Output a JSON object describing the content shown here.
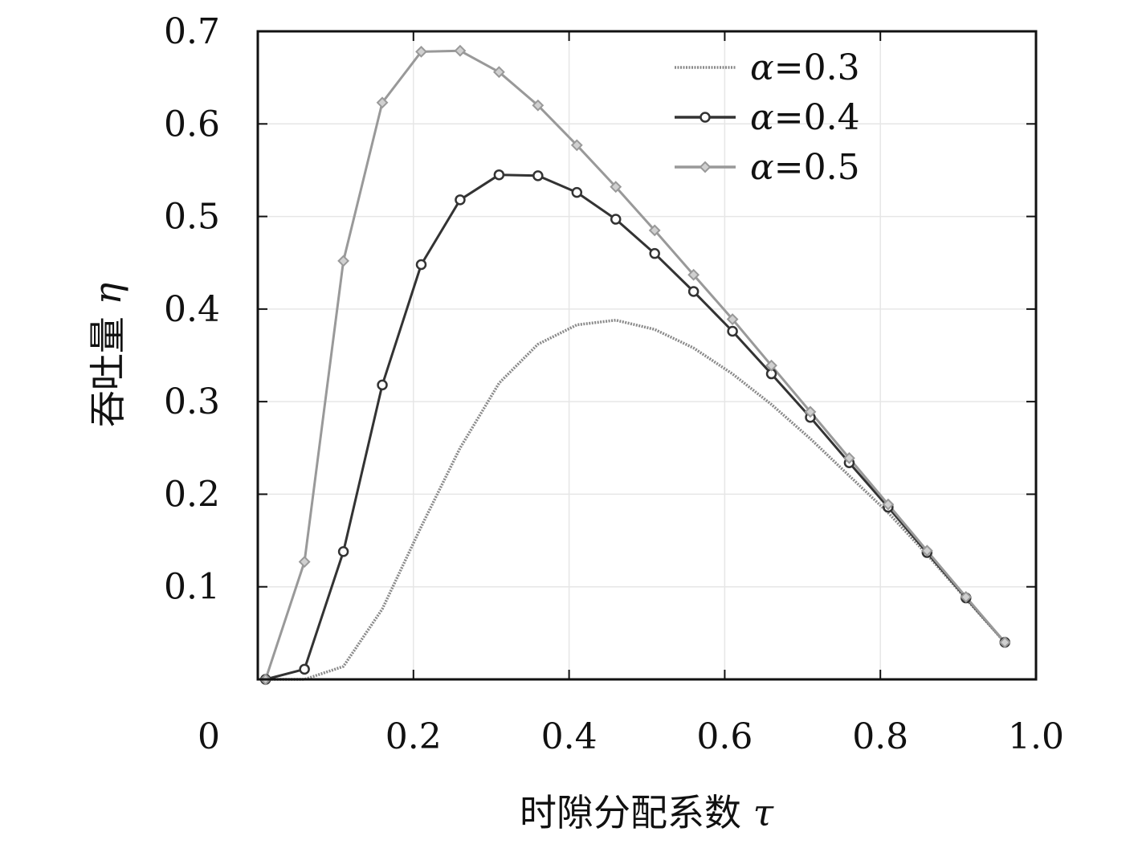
{
  "chart_data": {
    "type": "line",
    "xlabel_text": "时隙分配系数",
    "xlabel_symbol": "τ",
    "ylabel_text": "吞吐量",
    "ylabel_symbol": "η",
    "xlim": [
      0,
      1.0
    ],
    "ylim": [
      0,
      0.7
    ],
    "x_ticks": [
      0,
      0.2,
      0.4,
      0.6,
      0.8,
      1.0
    ],
    "x_tick_labels": [
      "0",
      "0.2",
      "0.4",
      "0.6",
      "0.8",
      "1.0"
    ],
    "y_ticks": [
      0.1,
      0.2,
      0.3,
      0.4,
      0.5,
      0.6,
      0.7
    ],
    "y_tick_labels": [
      "0.1",
      "0.2",
      "0.3",
      "0.4",
      "0.5",
      "0.6",
      "0.7"
    ],
    "grid": true,
    "legend_position": "top-right",
    "x": [
      0.01,
      0.06,
      0.11,
      0.16,
      0.21,
      0.26,
      0.31,
      0.36,
      0.41,
      0.46,
      0.51,
      0.56,
      0.61,
      0.66,
      0.71,
      0.76,
      0.81,
      0.86,
      0.91,
      0.96
    ],
    "series": [
      {
        "name": "α=0.3",
        "name_symbol": "α",
        "name_value": "=0.3",
        "color": "#8a8a8a",
        "style": "dotted",
        "marker": "none",
        "values": [
          0.0,
          0.0,
          0.014,
          0.076,
          0.165,
          0.25,
          0.32,
          0.362,
          0.383,
          0.388,
          0.378,
          0.358,
          0.33,
          0.297,
          0.26,
          0.22,
          0.18,
          0.135,
          0.087,
          0.04
        ]
      },
      {
        "name": "α=0.4",
        "name_symbol": "α",
        "name_value": "=0.4",
        "color": "#333333",
        "style": "solid",
        "marker": "circle",
        "values": [
          0.0,
          0.011,
          0.138,
          0.318,
          0.448,
          0.518,
          0.545,
          0.544,
          0.526,
          0.497,
          0.46,
          0.419,
          0.376,
          0.33,
          0.283,
          0.234,
          0.186,
          0.137,
          0.088,
          0.04
        ]
      },
      {
        "name": "α=0.5",
        "name_symbol": "α",
        "name_value": "=0.5",
        "color": "#999999",
        "style": "solid",
        "marker": "diamond",
        "values": [
          0.0,
          0.127,
          0.452,
          0.623,
          0.678,
          0.679,
          0.656,
          0.62,
          0.577,
          0.532,
          0.485,
          0.437,
          0.389,
          0.339,
          0.289,
          0.239,
          0.189,
          0.139,
          0.089,
          0.04
        ]
      }
    ]
  },
  "colors": {
    "background": "#ffffff",
    "axes_frame": "#111111",
    "grid": "#e6e6e6"
  }
}
